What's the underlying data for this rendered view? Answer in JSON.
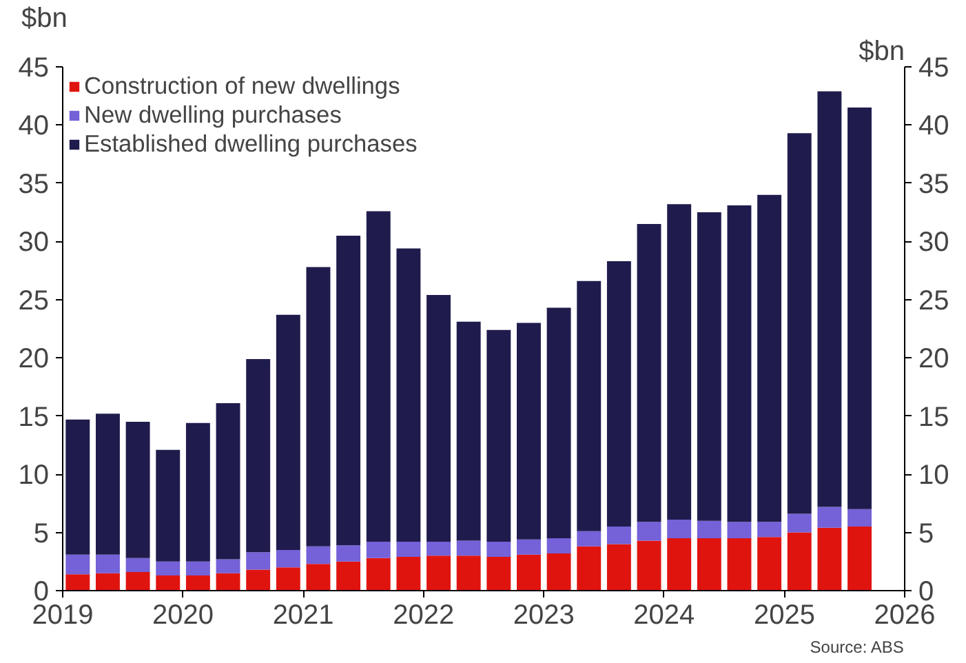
{
  "chart_data": {
    "type": "bar",
    "stacked": true,
    "ylabel": "$bn",
    "y2label": "$bn",
    "x": [
      2019.125,
      2019.375,
      2019.625,
      2019.875,
      2020.125,
      2020.375,
      2020.625,
      2020.875,
      2021.125,
      2021.375,
      2021.625,
      2021.875,
      2022.125,
      2022.375,
      2022.625,
      2022.875,
      2023.125,
      2023.375,
      2023.625,
      2023.875,
      2024.125,
      2024.375,
      2024.625,
      2024.875,
      2025.125,
      2025.375,
      2025.625
    ],
    "series": [
      {
        "name": "Construction of new dwellings",
        "color": "#e0140f",
        "values": [
          1.4,
          1.5,
          1.6,
          1.3,
          1.3,
          1.5,
          1.8,
          2.0,
          2.3,
          2.5,
          2.8,
          2.9,
          3.0,
          3.0,
          2.9,
          3.1,
          3.2,
          3.8,
          4.0,
          4.3,
          4.5,
          4.5,
          4.5,
          4.6,
          5.0,
          5.4,
          5.5
        ]
      },
      {
        "name": "New dwelling purchases",
        "color": "#7561d8",
        "values": [
          1.7,
          1.6,
          1.2,
          1.2,
          1.2,
          1.2,
          1.5,
          1.5,
          1.5,
          1.4,
          1.4,
          1.3,
          1.2,
          1.3,
          1.3,
          1.3,
          1.3,
          1.3,
          1.5,
          1.6,
          1.6,
          1.5,
          1.4,
          1.3,
          1.6,
          1.8,
          1.5
        ]
      },
      {
        "name": "Established dwelling purchases",
        "color": "#1f1c4d",
        "values": [
          11.6,
          12.1,
          11.7,
          9.6,
          11.9,
          13.4,
          16.6,
          20.2,
          24.0,
          26.6,
          28.4,
          25.2,
          21.2,
          18.8,
          18.2,
          18.6,
          19.8,
          21.5,
          22.8,
          25.6,
          27.1,
          26.5,
          27.2,
          28.1,
          32.7,
          35.7,
          34.5
        ]
      }
    ],
    "xlim": [
      2019,
      2026
    ],
    "xticks": [
      2019,
      2020,
      2021,
      2022,
      2023,
      2024,
      2025,
      2026
    ],
    "ylim": [
      0,
      45
    ],
    "yticks": [
      0,
      5,
      10,
      15,
      20,
      25,
      30,
      35,
      40,
      45
    ],
    "y2lim": [
      0,
      45
    ],
    "y2ticks": [
      0,
      5,
      10,
      15,
      20,
      25,
      30,
      35,
      40,
      45
    ],
    "legend": "top left",
    "grid": false,
    "annotations": [
      "Source: ABS"
    ]
  }
}
